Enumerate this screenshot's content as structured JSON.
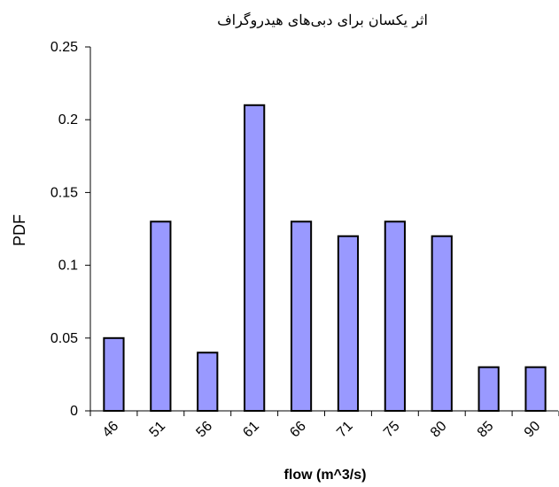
{
  "chart_data": {
    "type": "bar",
    "title": "اثر یکسان برای دبی‌های هیدروگراف",
    "xlabel": "flow (m^3/s)",
    "ylabel": "PDF",
    "categories": [
      "46",
      "51",
      "56",
      "61",
      "66",
      "71",
      "75",
      "80",
      "85",
      "90"
    ],
    "values": [
      0.05,
      0.13,
      0.04,
      0.21,
      0.13,
      0.12,
      0.13,
      0.12,
      0.03,
      0.03
    ],
    "ylim": [
      0,
      0.25
    ],
    "yticks": [
      "0",
      "0.05",
      "0.1",
      "0.15",
      "0.2",
      "0.25"
    ],
    "bar_color": "#9999ff",
    "grid": false,
    "legend": "none"
  }
}
